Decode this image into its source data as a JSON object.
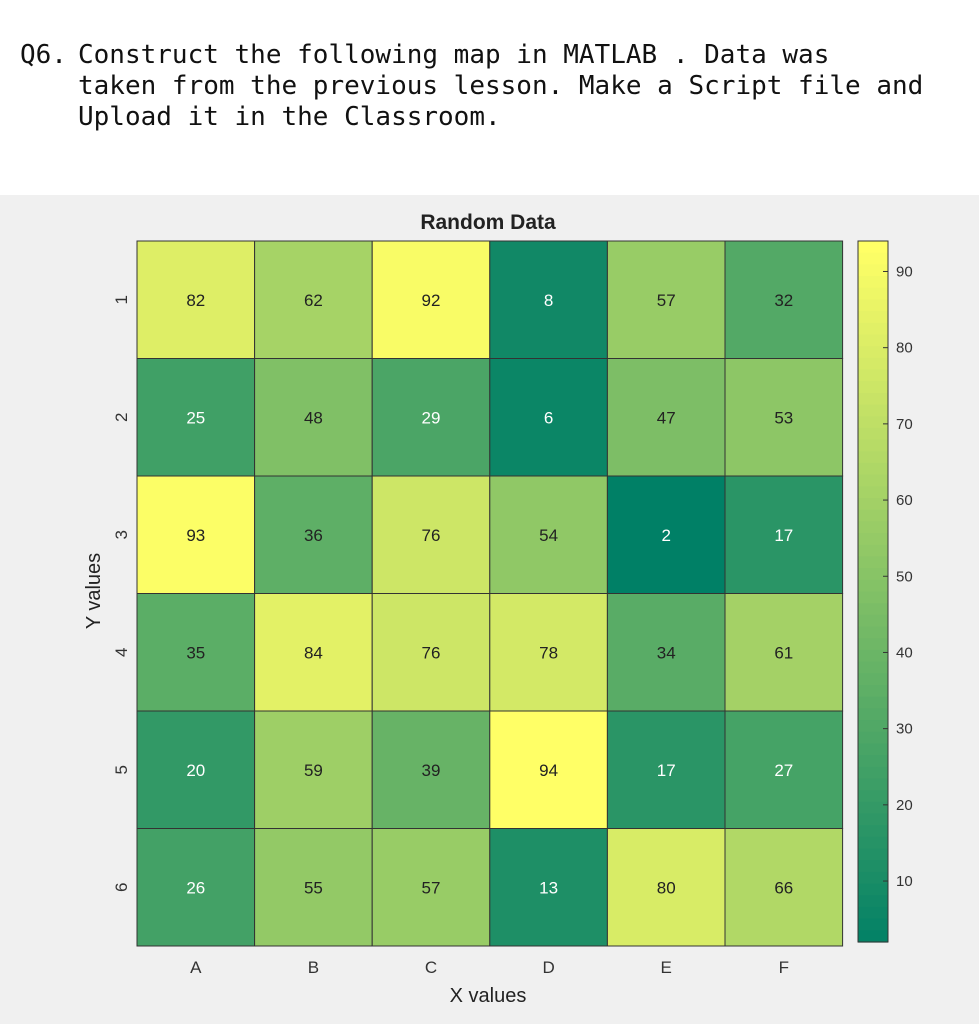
{
  "question": {
    "number": "Q6.",
    "text": "Construct the following map in MATLAB . Data was\ntaken from the previous lesson. Make a Script file and\nUpload it in the Classroom."
  },
  "chart_data": {
    "type": "heatmap",
    "title": "Random Data",
    "xlabel": "X values",
    "ylabel": "Y values",
    "x_categories": [
      "A",
      "B",
      "C",
      "D",
      "E",
      "F"
    ],
    "y_categories": [
      "1",
      "2",
      "3",
      "4",
      "5",
      "6"
    ],
    "values": [
      [
        82,
        62,
        92,
        8,
        57,
        32
      ],
      [
        25,
        48,
        29,
        6,
        47,
        53
      ],
      [
        93,
        36,
        76,
        54,
        2,
        17
      ],
      [
        35,
        84,
        76,
        78,
        34,
        61
      ],
      [
        20,
        59,
        39,
        94,
        17,
        27
      ],
      [
        26,
        55,
        57,
        13,
        80,
        66
      ]
    ],
    "colormap": "summer",
    "colorbar": {
      "min": 2,
      "max": 94,
      "ticks": [
        10,
        20,
        30,
        40,
        50,
        60,
        70,
        80,
        90
      ],
      "low_color": "#008066",
      "high_color": "#ffff66"
    },
    "grid_line_color": "#333333",
    "light_text_threshold": 30
  }
}
